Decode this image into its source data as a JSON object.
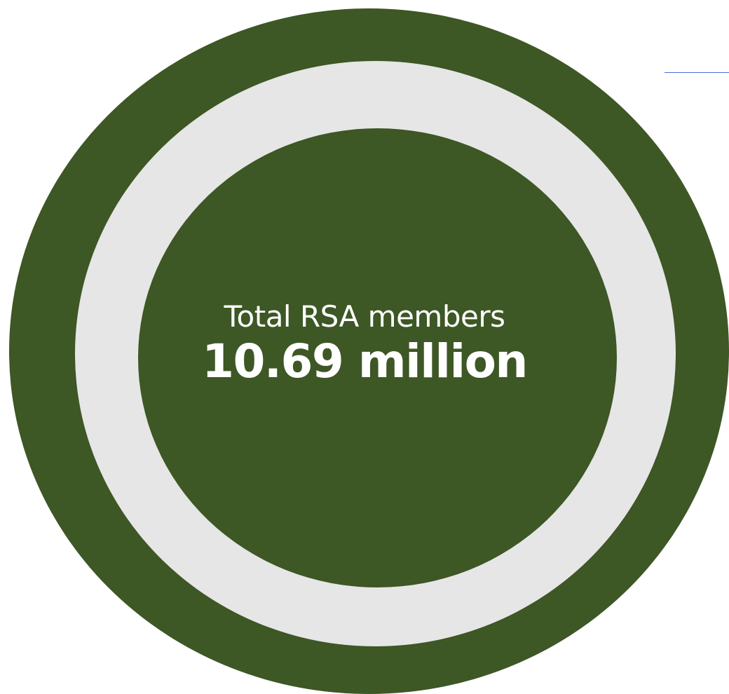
{
  "metric": {
    "label": "Total RSA members",
    "value": "10.69 million"
  },
  "colors": {
    "ring_green": "#3d5725",
    "ring_grey": "#e6e6e6",
    "text": "#ffffff",
    "accent_line": "#4a6fe0"
  }
}
